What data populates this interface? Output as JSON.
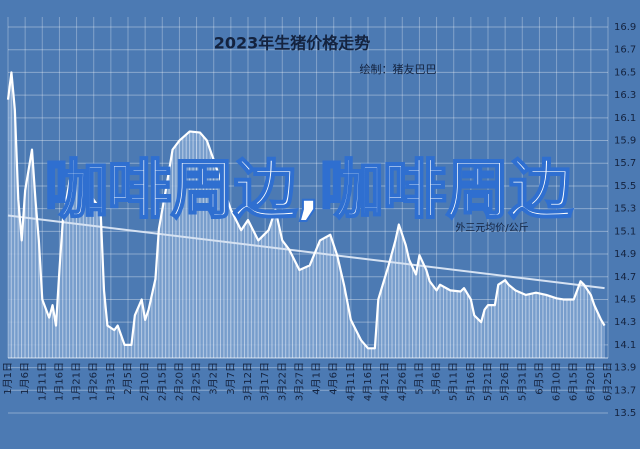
{
  "chart_data": {
    "type": "line",
    "title": "2023年生猪价格走势",
    "subtitle": "绘制：猪友巴巴",
    "annotation": "外三元均价/公斤",
    "overlay_text": "咖啡周边,咖啡周边",
    "x": [
      "1月1日",
      "1月2日",
      "1月3日",
      "1月4日",
      "1月5日",
      "1月6日",
      "1月8日",
      "1月9日",
      "1月10日",
      "1月11日",
      "1月13日",
      "1月14日",
      "1月15日",
      "1月16日",
      "1月17日",
      "1月19日",
      "1月22日",
      "1月25日",
      "1月28日",
      "1月29日",
      "1月30日",
      "2月1日",
      "2月2日",
      "2月4日",
      "2月6日",
      "2月7日",
      "2月9日",
      "2月10日",
      "2月11日",
      "2月13日",
      "2月14日",
      "2月16日",
      "2月18日",
      "2月20日",
      "2月23日",
      "2月26日",
      "2月28日",
      "3月2日",
      "3月4日",
      "3月7日",
      "3月10日",
      "3月12日",
      "3月15日",
      "3月18日",
      "3月20日",
      "3月22日",
      "3月24日",
      "3月27日",
      "3月30日",
      "4月2日",
      "4月5日",
      "4月7日",
      "4月9日",
      "4月11日",
      "4月14日",
      "4月16日",
      "4月18日",
      "4月19日",
      "4月22日",
      "4月24日",
      "4月25日",
      "4月27日",
      "4月28日",
      "4月30日",
      "5月1日",
      "5月3日",
      "5月4日",
      "5月6日",
      "5月7日",
      "5月10日",
      "5月13日",
      "5月14日",
      "5月16日",
      "5月17日",
      "5月19日",
      "5月20日",
      "5月21日",
      "5月23日",
      "5月24日",
      "5月26日",
      "5月27日",
      "5月29日",
      "6月1日",
      "6月4日",
      "6月7日",
      "6月10日",
      "6月12日",
      "6月15日",
      "6月17日",
      "6月18日",
      "6月20日",
      "6月21日",
      "6月23日",
      "6月24日"
    ],
    "values": [
      16.26,
      16.5,
      16.17,
      15.38,
      15.02,
      15.46,
      15.82,
      15.38,
      15.02,
      14.5,
      14.34,
      14.45,
      14.27,
      14.76,
      15.2,
      15.55,
      15.64,
      15.42,
      15.29,
      14.58,
      14.27,
      14.23,
      14.27,
      14.1,
      14.1,
      14.36,
      14.5,
      14.32,
      14.41,
      14.68,
      15.12,
      15.46,
      15.82,
      15.9,
      15.98,
      15.97,
      15.9,
      15.73,
      15.55,
      15.29,
      15.11,
      15.2,
      15.02,
      15.11,
      15.29,
      15.02,
      14.94,
      14.76,
      14.8,
      15.02,
      15.07,
      14.89,
      14.63,
      14.32,
      14.14,
      14.07,
      14.07,
      14.5,
      14.8,
      15.02,
      15.16,
      14.98,
      14.85,
      14.72,
      14.89,
      14.76,
      14.66,
      14.58,
      14.63,
      14.58,
      14.57,
      14.6,
      14.5,
      14.36,
      14.3,
      14.41,
      14.45,
      14.45,
      14.63,
      14.67,
      14.63,
      14.58,
      14.54,
      14.56,
      14.54,
      14.51,
      14.5,
      14.5,
      14.66,
      14.63,
      14.54,
      14.45,
      14.32,
      14.27
    ],
    "color": "#ffffff",
    "trend": {
      "x": [
        "1月1日",
        "6月24日"
      ],
      "values": [
        15.24,
        14.6
      ],
      "color": "#d6e2f2"
    },
    "xticks": [
      "1月1日",
      "1月6日",
      "1月11日",
      "1月16日",
      "1月21日",
      "1月26日",
      "1月31日",
      "2月5日",
      "2月10日",
      "2月15日",
      "2月20日",
      "2月25日",
      "3月2日",
      "3月7日",
      "3月12日",
      "3月17日",
      "3月22日",
      "3月27日",
      "4月1日",
      "4月6日",
      "4月11日",
      "4月16日",
      "4月21日",
      "4月26日",
      "5月1日",
      "5月6日",
      "5月11日",
      "5月16日",
      "5月21日",
      "5月26日",
      "5月31日",
      "6月5日",
      "6月10日",
      "6月15日",
      "6月20日",
      "6月25日"
    ],
    "ylim": [
      13.5,
      16.9
    ],
    "yticks": [
      13.5,
      13.7,
      13.9,
      14.1,
      14.3,
      14.5,
      14.7,
      14.9,
      15.1,
      15.3,
      15.5,
      15.7,
      15.9,
      16.1,
      16.3,
      16.5,
      16.7,
      16.9
    ],
    "grid": true
  }
}
